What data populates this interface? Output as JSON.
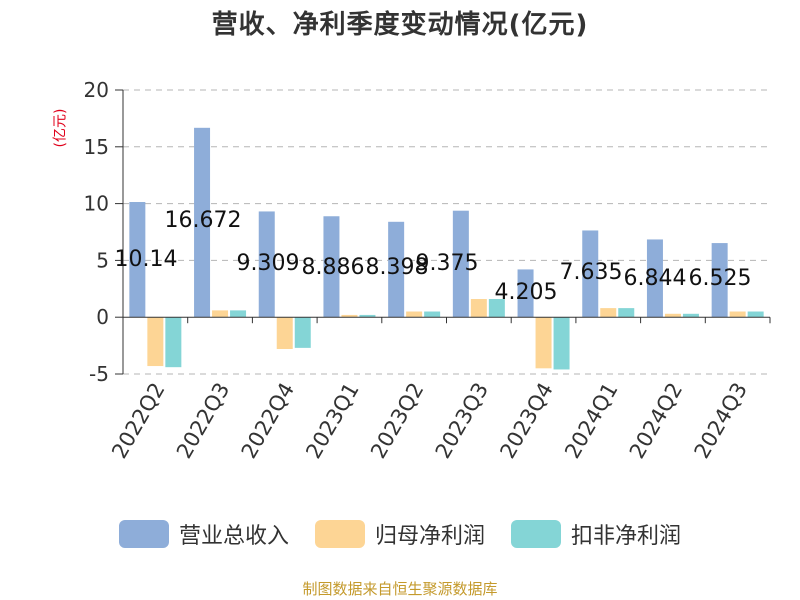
{
  "chart_data": {
    "type": "bar",
    "title": "营收、净利季度变动情况(亿元)",
    "ylabel": "(亿元)",
    "xlabel": "",
    "ylim": [
      -5,
      20
    ],
    "yticks": [
      20,
      15,
      10,
      5,
      0,
      -5
    ],
    "categories": [
      "2022Q2",
      "2022Q3",
      "2022Q4",
      "2023Q1",
      "2023Q2",
      "2023Q3",
      "2023Q4",
      "2024Q1",
      "2024Q2",
      "2024Q3"
    ],
    "series": [
      {
        "name": "营业总收入",
        "color": "#8eadd9",
        "values": [
          10.14,
          16.672,
          9.309,
          8.886,
          8.398,
          9.375,
          4.205,
          7.635,
          6.844,
          6.525
        ]
      },
      {
        "name": "归母净利润",
        "color": "#fdd595",
        "values": [
          -4.3,
          0.6,
          -2.8,
          0.2,
          0.5,
          1.6,
          -4.5,
          0.8,
          0.3,
          0.5
        ]
      },
      {
        "name": "扣非净利润",
        "color": "#84d5d6",
        "values": [
          -4.4,
          0.6,
          -2.7,
          0.2,
          0.5,
          1.6,
          -4.6,
          0.8,
          0.3,
          0.5
        ]
      }
    ],
    "data_labels": [
      "10.14",
      "16.672",
      "9.309",
      "8.886",
      "8.398",
      "9.375",
      "4.205",
      "7.635",
      "6.844",
      "6.525"
    ],
    "grid": true,
    "legend": "bottom"
  },
  "source": "制图数据来自恒生聚源数据库"
}
